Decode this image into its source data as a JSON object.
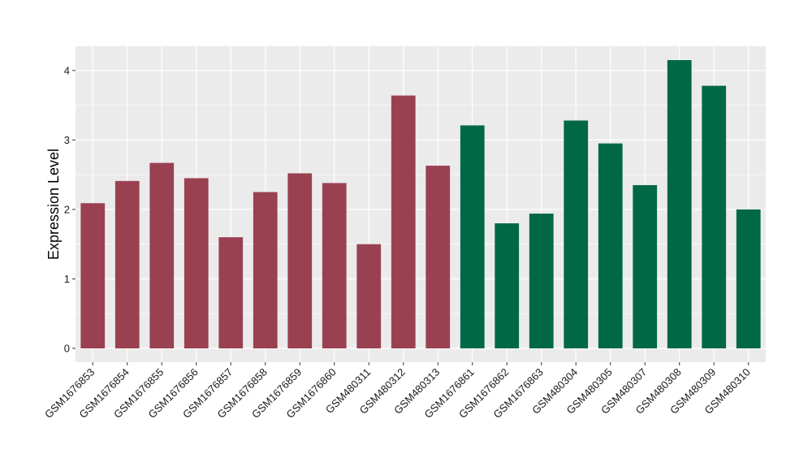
{
  "chart_data": {
    "type": "bar",
    "ylabel": "Expression Level",
    "xlabel": "",
    "ylim": [
      0,
      4.35
    ],
    "y_ticks": [
      0,
      1,
      2,
      3,
      4
    ],
    "grid": true,
    "background": "#EBEBEB",
    "categories": [
      "GSM1676853",
      "GSM1676854",
      "GSM1676855",
      "GSM1676856",
      "GSM1676857",
      "GSM1676858",
      "GSM1676859",
      "GSM1676860",
      "GSM480311",
      "GSM480312",
      "GSM480313",
      "GSM1676861",
      "GSM1676862",
      "GSM1676863",
      "GSM480304",
      "GSM480305",
      "GSM480307",
      "GSM480308",
      "GSM480309",
      "GSM480310"
    ],
    "values": [
      2.09,
      2.41,
      2.67,
      2.45,
      1.6,
      2.25,
      2.52,
      2.38,
      1.5,
      3.64,
      2.63,
      3.21,
      1.8,
      1.94,
      3.28,
      2.95,
      2.35,
      4.15,
      3.78,
      2.0
    ],
    "groups": [
      0,
      0,
      0,
      0,
      0,
      0,
      0,
      0,
      0,
      0,
      0,
      1,
      1,
      1,
      1,
      1,
      1,
      1,
      1,
      1
    ],
    "group_colors": [
      "#9A4151",
      "#006845"
    ]
  }
}
